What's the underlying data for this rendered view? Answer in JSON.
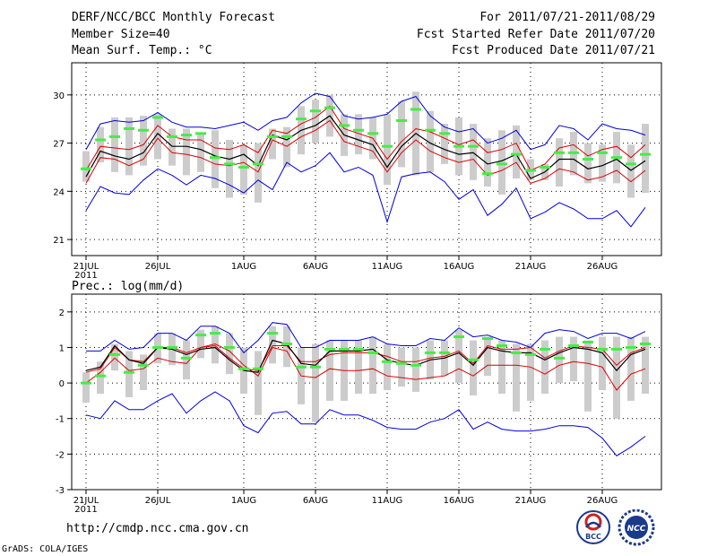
{
  "header": {
    "title": "DERF/NCC/BCC Monthly Forecast",
    "member_size": "Member Size=40",
    "temp_label": "Mean Surf. Temp.: °C",
    "fcst_range": "For 2011/07/21-2011/08/29",
    "fcst_started": "Fcst Started Refer Date 2011/07/20",
    "fcst_produced": "Fcst Produced Date 2011/07/21"
  },
  "footer": {
    "url": "http://cmdp.ncc.cma.gov.cn",
    "grads": "GrADS: COLA/IGES",
    "logo_bcc": "BCC",
    "logo_ncc": "NCC"
  },
  "colors": {
    "max_min": "#0000dd",
    "spread": "#dd0000",
    "mean": "#000000",
    "median": "#44ee44",
    "box": "#cccccc"
  },
  "chart_data": [
    {
      "type": "line",
      "title": "Mean Surf. Temp.: °C",
      "ylim": [
        20,
        32
      ],
      "yticks": [
        21,
        24,
        27,
        30
      ],
      "x_tick_labels": [
        "21JUL",
        "26JUL",
        "1AUG",
        "6AUG",
        "11AUG",
        "16AUG",
        "21AUG",
        "26AUG"
      ],
      "x_tick_days": [
        0,
        5,
        11,
        16,
        21,
        26,
        31,
        36
      ],
      "year_label": "2011",
      "days": 40,
      "series": [
        {
          "name": "max",
          "values": [
            22.8,
            24.3,
            23.9,
            23.8,
            24.7,
            25.4,
            25.0,
            24.4,
            25.0,
            24.8,
            24.4,
            23.9,
            24.7,
            24.1,
            25.8,
            25.2,
            25.6,
            26.4,
            25.2,
            25.5,
            25.0,
            22.1,
            24.9,
            25.1,
            25.2,
            24.6,
            23.5,
            24.1,
            22.5,
            23.2,
            24.2,
            22.3,
            22.7,
            23.3,
            22.9,
            22.3,
            22.3,
            22.8,
            21.8,
            23.0
          ]
        },
        {
          "name": "spread_upper",
          "values": [
            25.3,
            26.8,
            26.7,
            26.6,
            26.9,
            28.1,
            27.4,
            27.2,
            27.2,
            26.7,
            26.6,
            26.9,
            26.4,
            27.8,
            27.6,
            28.2,
            28.6,
            29.3,
            27.9,
            27.6,
            27.3,
            26.0,
            27.1,
            27.9,
            27.7,
            27.3,
            26.9,
            27.2,
            26.4,
            26.6,
            27.0,
            25.3,
            25.7,
            26.7,
            26.9,
            26.2,
            26.6,
            26.8,
            26.1,
            26.9
          ]
        },
        {
          "name": "mean",
          "values": [
            24.9,
            26.5,
            26.2,
            26.0,
            26.4,
            27.6,
            26.8,
            26.8,
            26.6,
            26.2,
            26.0,
            26.3,
            25.6,
            27.5,
            27.2,
            27.8,
            28.1,
            28.7,
            27.5,
            27.2,
            26.9,
            25.5,
            26.8,
            27.6,
            27.0,
            26.6,
            26.3,
            26.4,
            25.7,
            25.9,
            26.3,
            24.8,
            25.2,
            26.0,
            26.0,
            25.4,
            25.6,
            26.0,
            25.3,
            25.9
          ]
        },
        {
          "name": "spread_lower",
          "values": [
            24.5,
            26.1,
            26.0,
            25.6,
            26.0,
            27.3,
            26.4,
            26.3,
            26.1,
            25.7,
            25.6,
            25.8,
            25.2,
            27.2,
            26.8,
            27.4,
            27.8,
            28.4,
            27.1,
            26.8,
            26.5,
            25.2,
            26.4,
            27.2,
            26.5,
            26.1,
            25.8,
            26.0,
            25.0,
            25.3,
            25.8,
            24.5,
            24.8,
            25.4,
            25.2,
            24.7,
            24.9,
            25.3,
            24.6,
            25.3
          ]
        },
        {
          "name": "min",
          "values": [
            26.6,
            28.2,
            28.4,
            28.3,
            28.4,
            28.9,
            28.3,
            28.0,
            28.0,
            27.9,
            28.1,
            28.3,
            27.8,
            28.4,
            28.6,
            29.5,
            30.1,
            29.9,
            28.7,
            28.5,
            28.6,
            28.8,
            29.6,
            29.9,
            28.7,
            28.0,
            27.7,
            27.9,
            27.0,
            27.3,
            27.8,
            26.6,
            26.9,
            28.1,
            27.9,
            27.2,
            28.2,
            27.9,
            27.8,
            27.5
          ]
        },
        {
          "name": "median",
          "values": [
            25.4,
            27.2,
            27.4,
            27.9,
            27.8,
            28.6,
            27.4,
            27.5,
            27.6,
            26.1,
            25.7,
            25.5,
            25.7,
            27.4,
            27.4,
            28.5,
            29.0,
            29.2,
            28.1,
            27.8,
            27.6,
            26.8,
            28.4,
            29.1,
            27.8,
            27.6,
            26.8,
            26.8,
            25.1,
            25.7,
            26.3,
            25.3,
            25.5,
            26.4,
            26.4,
            26.0,
            26.4,
            26.1,
            25.7,
            26.3
          ]
        },
        {
          "name": "box_low",
          "values": [
            24.6,
            25.8,
            25.2,
            25.0,
            25.6,
            26.0,
            25.6,
            25.0,
            25.2,
            24.2,
            23.6,
            23.8,
            23.3,
            26.0,
            25.5,
            26.3,
            27.0,
            27.4,
            26.2,
            26.3,
            26.0,
            24.4,
            25.5,
            25.0,
            25.2,
            25.7,
            25.0,
            24.7,
            24.3,
            23.8,
            24.8,
            24.7,
            24.7,
            24.3,
            25.0,
            24.5,
            24.6,
            24.5,
            23.6,
            23.9
          ]
        },
        {
          "name": "box_high",
          "values": [
            26.5,
            28.0,
            28.6,
            28.6,
            28.7,
            28.8,
            27.9,
            27.9,
            27.6,
            27.8,
            27.2,
            26.9,
            27.0,
            27.9,
            28.0,
            29.3,
            29.7,
            30.0,
            28.8,
            28.8,
            28.6,
            28.8,
            29.6,
            30.2,
            29.0,
            28.2,
            28.6,
            28.2,
            27.3,
            27.8,
            28.1,
            26.0,
            25.7,
            27.3,
            27.7,
            27.0,
            26.9,
            27.7,
            26.9,
            28.2
          ]
        }
      ]
    },
    {
      "type": "line",
      "title": "Prec.: log(mm/d)",
      "ylim": [
        -3,
        2.5
      ],
      "yticks": [
        -3,
        -2,
        -1,
        0,
        1,
        2
      ],
      "x_tick_labels": [
        "21JUL",
        "26JUL",
        "1AUG",
        "6AUG",
        "11AUG",
        "16AUG",
        "21AUG",
        "26AUG"
      ],
      "x_tick_days": [
        0,
        5,
        11,
        16,
        21,
        26,
        31,
        36
      ],
      "year_label": "2011",
      "days": 40,
      "series": [
        {
          "name": "max",
          "values": [
            -0.9,
            -1.0,
            -0.5,
            -0.75,
            -0.75,
            -0.5,
            -0.3,
            -0.85,
            -0.5,
            -0.25,
            -0.5,
            -1.2,
            -1.4,
            -0.85,
            -0.8,
            -1.15,
            -1.15,
            -0.75,
            -0.9,
            -0.9,
            -1.05,
            -1.25,
            -1.3,
            -1.3,
            -1.1,
            -1.0,
            -0.75,
            -1.3,
            -1.1,
            -1.3,
            -1.35,
            -1.35,
            -1.3,
            -1.2,
            -1.2,
            -1.25,
            -1.55,
            -2.05,
            -1.8,
            -1.5
          ]
        },
        {
          "name": "spread_upper",
          "values": [
            0.3,
            0.4,
            1.0,
            0.65,
            0.6,
            1.0,
            1.0,
            0.85,
            1.0,
            1.05,
            0.7,
            0.4,
            0.35,
            1.05,
            1.05,
            0.6,
            0.6,
            0.8,
            0.85,
            0.85,
            0.85,
            0.75,
            0.6,
            0.6,
            0.7,
            0.75,
            0.9,
            0.55,
            1.05,
            0.95,
            0.95,
            1.0,
            0.7,
            0.9,
            1.05,
            1.0,
            0.95,
            0.5,
            0.85,
            1.0
          ]
        },
        {
          "name": "mean",
          "values": [
            0.35,
            0.45,
            1.05,
            0.65,
            0.55,
            1.0,
            0.95,
            0.8,
            0.95,
            1.0,
            0.65,
            0.35,
            0.3,
            1.2,
            1.1,
            0.55,
            0.5,
            0.9,
            0.9,
            0.9,
            0.95,
            0.65,
            0.55,
            0.5,
            0.65,
            0.7,
            0.85,
            0.5,
            1.0,
            0.9,
            0.85,
            0.85,
            0.65,
            0.85,
            1.0,
            0.95,
            0.85,
            0.35,
            0.8,
            0.95
          ]
        },
        {
          "name": "spread_lower",
          "values": [
            0.0,
            0.3,
            0.7,
            0.35,
            0.4,
            0.7,
            0.6,
            0.55,
            1.0,
            1.1,
            0.9,
            0.5,
            0.2,
            1.0,
            0.9,
            0.2,
            0.15,
            0.4,
            0.35,
            0.35,
            0.4,
            0.2,
            0.15,
            0.1,
            0.15,
            0.2,
            0.4,
            0.2,
            0.5,
            0.5,
            0.5,
            0.45,
            0.25,
            0.5,
            0.6,
            0.55,
            0.45,
            -0.2,
            0.25,
            0.4
          ]
        },
        {
          "name": "min",
          "values": [
            0.9,
            0.9,
            1.2,
            0.95,
            1.0,
            1.4,
            1.4,
            1.2,
            1.6,
            1.6,
            1.4,
            0.85,
            1.2,
            1.7,
            1.65,
            1.0,
            1.0,
            1.2,
            1.2,
            1.2,
            1.3,
            1.1,
            1.05,
            1.05,
            1.25,
            1.2,
            1.55,
            1.3,
            1.35,
            1.2,
            1.15,
            1.0,
            1.4,
            1.5,
            1.45,
            1.25,
            1.4,
            1.4,
            1.25,
            1.45
          ]
        },
        {
          "name": "median",
          "values": [
            0.0,
            0.2,
            0.8,
            0.3,
            0.5,
            1.0,
            1.0,
            0.7,
            1.35,
            1.4,
            1.0,
            0.4,
            0.4,
            1.4,
            1.1,
            0.45,
            0.45,
            0.95,
            0.95,
            0.95,
            0.85,
            0.6,
            0.55,
            0.5,
            0.85,
            0.85,
            1.3,
            0.65,
            1.25,
            1.05,
            0.85,
            0.8,
            0.95,
            0.7,
            1.05,
            1.15,
            0.95,
            0.95,
            1.0,
            1.1
          ]
        },
        {
          "name": "box_low",
          "values": [
            -0.55,
            -0.3,
            0.35,
            -0.4,
            -0.2,
            0.55,
            0.5,
            0.1,
            0.7,
            0.55,
            0.25,
            -0.3,
            -0.9,
            0.55,
            0.45,
            -0.6,
            -1.1,
            -0.5,
            -0.5,
            -0.3,
            -0.3,
            -0.2,
            -0.1,
            -0.25,
            0.1,
            0.2,
            0.0,
            -0.35,
            0.2,
            -0.3,
            -0.8,
            -0.5,
            -0.3,
            0.0,
            0.05,
            -0.8,
            -0.2,
            -1.0,
            -0.5,
            -0.3
          ]
        },
        {
          "name": "box_high",
          "values": [
            0.3,
            0.6,
            1.1,
            0.9,
            0.8,
            1.4,
            1.4,
            1.2,
            1.5,
            1.6,
            1.4,
            1.0,
            0.9,
            1.6,
            1.6,
            1.0,
            1.1,
            1.2,
            1.2,
            1.2,
            1.3,
            1.1,
            1.0,
            1.0,
            1.2,
            1.2,
            1.5,
            1.2,
            1.3,
            1.2,
            1.1,
            1.1,
            1.2,
            1.3,
            1.3,
            1.2,
            1.3,
            1.3,
            1.3,
            1.3
          ]
        }
      ]
    }
  ]
}
